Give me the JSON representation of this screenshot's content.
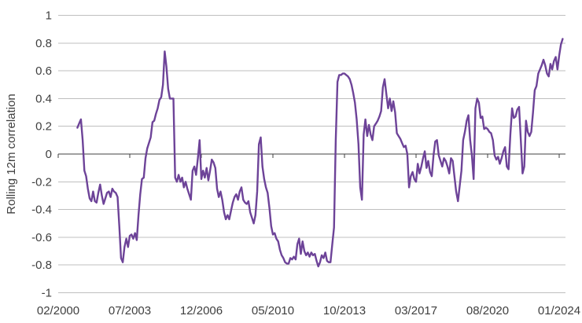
{
  "chart_data": {
    "type": "line",
    "ylabel": "Rolling 12m correlation",
    "x_tick_labels": [
      "02/2000",
      "07/2003",
      "12/2006",
      "05/2010",
      "10/2013",
      "03/2017",
      "08/2020",
      "01/2024"
    ],
    "x_tick_month_step": 41,
    "y_tick_labels": [
      "1",
      "0.8",
      "0.6",
      "0.4",
      "0.2",
      "0",
      "-0.2",
      "-0.4",
      "-0.6",
      "-0.8",
      "-1"
    ],
    "ylim": [
      -1,
      1
    ],
    "grid": "horizontal-only",
    "legend": "none",
    "series": [
      {
        "name": "Rolling 12m correlation",
        "frequency": "monthly",
        "start": "2001-01",
        "end": "2024-03",
        "start_offset_months_from_axis_origin": 11,
        "values": [
          0.19,
          0.22,
          0.25,
          0.1,
          -0.12,
          -0.16,
          -0.25,
          -0.32,
          -0.34,
          -0.27,
          -0.34,
          -0.35,
          -0.28,
          -0.22,
          -0.3,
          -0.36,
          -0.32,
          -0.28,
          -0.27,
          -0.31,
          -0.25,
          -0.27,
          -0.28,
          -0.31,
          -0.52,
          -0.75,
          -0.78,
          -0.67,
          -0.61,
          -0.67,
          -0.59,
          -0.58,
          -0.61,
          -0.57,
          -0.62,
          -0.44,
          -0.29,
          -0.18,
          -0.17,
          -0.03,
          0.04,
          0.08,
          0.12,
          0.23,
          0.24,
          0.29,
          0.33,
          0.39,
          0.41,
          0.5,
          0.74,
          0.63,
          0.47,
          0.4,
          0.4,
          0.4,
          -0.17,
          -0.2,
          -0.15,
          -0.2,
          -0.17,
          -0.24,
          -0.2,
          -0.25,
          -0.29,
          -0.33,
          -0.12,
          -0.09,
          -0.15,
          -0.03,
          0.1,
          -0.18,
          -0.12,
          -0.17,
          -0.1,
          -0.19,
          -0.12,
          -0.04,
          -0.06,
          -0.1,
          -0.25,
          -0.31,
          -0.27,
          -0.33,
          -0.42,
          -0.47,
          -0.44,
          -0.47,
          -0.41,
          -0.35,
          -0.31,
          -0.29,
          -0.33,
          -0.27,
          -0.24,
          -0.33,
          -0.35,
          -0.36,
          -0.34,
          -0.42,
          -0.46,
          -0.5,
          -0.44,
          -0.27,
          0.07,
          0.12,
          -0.09,
          -0.18,
          -0.24,
          -0.28,
          -0.39,
          -0.52,
          -0.58,
          -0.57,
          -0.61,
          -0.63,
          -0.69,
          -0.73,
          -0.75,
          -0.78,
          -0.79,
          -0.79,
          -0.75,
          -0.76,
          -0.74,
          -0.76,
          -0.65,
          -0.61,
          -0.72,
          -0.63,
          -0.7,
          -0.73,
          -0.71,
          -0.74,
          -0.71,
          -0.73,
          -0.72,
          -0.77,
          -0.81,
          -0.78,
          -0.73,
          -0.75,
          -0.71,
          -0.77,
          -0.78,
          -0.78,
          -0.65,
          -0.53,
          0.1,
          0.52,
          0.57,
          0.57,
          0.58,
          0.58,
          0.57,
          0.56,
          0.54,
          0.5,
          0.44,
          0.37,
          0.25,
          0.07,
          -0.24,
          -0.33,
          0.14,
          0.25,
          0.13,
          0.21,
          0.14,
          0.1,
          0.2,
          0.22,
          0.24,
          0.27,
          0.31,
          0.48,
          0.54,
          0.43,
          0.33,
          0.4,
          0.31,
          0.38,
          0.3,
          0.15,
          0.13,
          0.11,
          0.08,
          0.05,
          0.06,
          0.0,
          -0.24,
          -0.16,
          -0.13,
          -0.18,
          -0.2,
          -0.07,
          -0.14,
          -0.09,
          -0.03,
          0.02,
          -0.1,
          -0.05,
          -0.13,
          -0.16,
          -0.01,
          0.09,
          0.1,
          -0.01,
          -0.05,
          -0.09,
          -0.03,
          -0.05,
          -0.09,
          -0.14,
          -0.03,
          -0.05,
          -0.16,
          -0.27,
          -0.34,
          -0.23,
          -0.12,
          0.1,
          0.16,
          0.24,
          0.28,
          0.1,
          -0.01,
          -0.18,
          0.33,
          0.4,
          0.37,
          0.26,
          0.27,
          0.18,
          0.19,
          0.18,
          0.16,
          0.15,
          0.1,
          -0.01,
          -0.04,
          -0.02,
          -0.07,
          -0.03,
          0.02,
          0.05,
          -0.09,
          -0.11,
          0.14,
          0.33,
          0.26,
          0.27,
          0.32,
          0.34,
          0.1,
          -0.14,
          -0.09,
          0.24,
          0.16,
          0.13,
          0.16,
          0.3,
          0.46,
          0.49,
          0.58,
          0.61,
          0.64,
          0.68,
          0.64,
          0.58,
          0.56,
          0.65,
          0.61,
          0.67,
          0.7,
          0.61,
          0.71,
          0.79,
          0.83
        ]
      }
    ],
    "colors": {
      "line": "#6d4398",
      "gridline": "#bfbfbf",
      "axis": "#404040",
      "text": "#3f3f3f",
      "background": "#ffffff"
    }
  }
}
